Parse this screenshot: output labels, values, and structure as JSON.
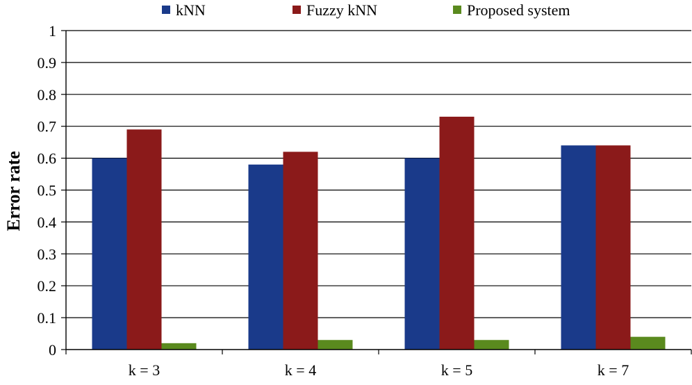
{
  "chart_data": {
    "type": "bar",
    "title": "",
    "xlabel": "",
    "ylabel": "Error rate",
    "ylim": [
      0,
      1
    ],
    "yticks": [
      "0",
      "0.1",
      "0.2",
      "0.3",
      "0.4",
      "0.5",
      "0.6",
      "0.7",
      "0.8",
      "0.9",
      "1"
    ],
    "grid": true,
    "legend_position": "top",
    "categories": [
      "k = 3",
      "k = 4",
      "k = 5",
      "k = 7"
    ],
    "series": [
      {
        "name": "kNN",
        "color": "#1a3a8a",
        "values": [
          0.6,
          0.58,
          0.6,
          0.64
        ]
      },
      {
        "name": "Fuzzy kNN",
        "color": "#8b1a1a",
        "values": [
          0.69,
          0.62,
          0.73,
          0.64
        ]
      },
      {
        "name": "Proposed system",
        "color": "#5a8a1e",
        "values": [
          0.02,
          0.03,
          0.03,
          0.04
        ]
      }
    ]
  }
}
